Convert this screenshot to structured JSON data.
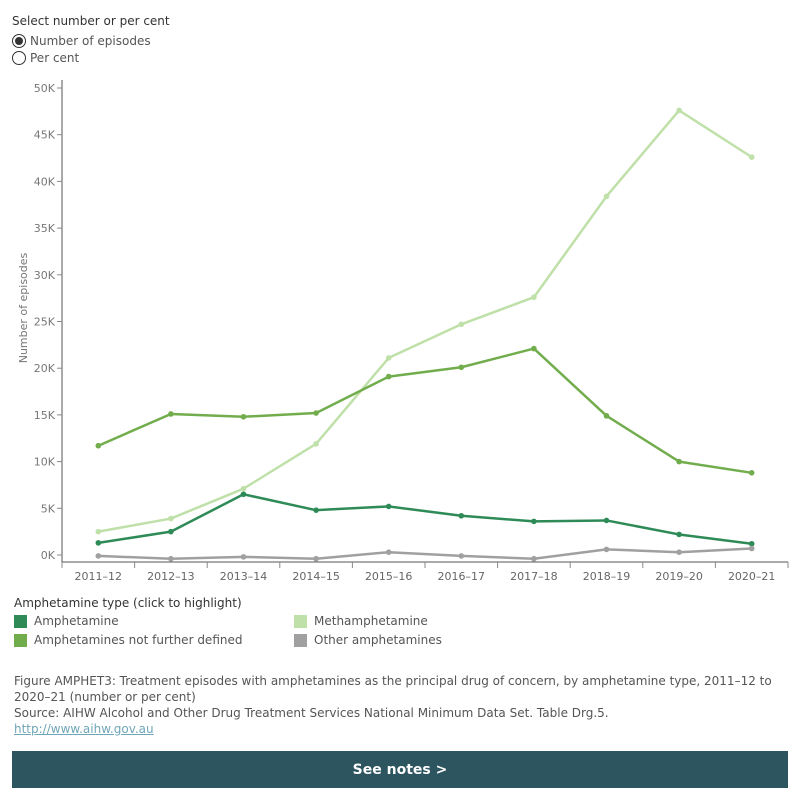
{
  "selector": {
    "title": "Select number or per cent",
    "options": [
      {
        "label": "Number of episodes",
        "selected": true
      },
      {
        "label": "Per cent",
        "selected": false
      }
    ]
  },
  "chart_data": {
    "type": "line",
    "categories": [
      "2011–12",
      "2012–13",
      "2013–14",
      "2014–15",
      "2015–16",
      "2016–17",
      "2017–18",
      "2018–19",
      "2019–20",
      "2020–21"
    ],
    "ylabel": "Number of episodes",
    "ylim": [
      0,
      50000
    ],
    "yticks": [
      0,
      5000,
      10000,
      15000,
      20000,
      25000,
      30000,
      35000,
      40000,
      45000,
      50000
    ],
    "ytick_labels": [
      "0K",
      "5K",
      "10K",
      "15K",
      "20K",
      "25K",
      "30K",
      "35K",
      "40K",
      "45K",
      "50K"
    ],
    "grid": false,
    "series": [
      {
        "name": "Methamphetamine",
        "color": "#bfe0a8",
        "values": [
          2500,
          3900,
          7100,
          11900,
          21100,
          24700,
          27600,
          38400,
          47600,
          42600
        ]
      },
      {
        "name": "Amphetamines not further defined",
        "color": "#72ad4d",
        "values": [
          11700,
          15100,
          14800,
          15200,
          19100,
          20100,
          22100,
          14900,
          10000,
          8800
        ]
      },
      {
        "name": "Amphetamine",
        "color": "#2e8b57",
        "values": [
          1300,
          2500,
          6500,
          4800,
          5200,
          4200,
          3600,
          3700,
          2200,
          1200
        ]
      },
      {
        "name": "Other amphetamines",
        "color": "#a0a0a0",
        "values": [
          -100,
          -400,
          -200,
          -400,
          300,
          -100,
          -400,
          600,
          300,
          700
        ]
      }
    ]
  },
  "legend": {
    "title": "Amphetamine type (click to highlight)",
    "items": [
      {
        "label": "Amphetamine",
        "color": "#2e8b57"
      },
      {
        "label": "Methamphetamine",
        "color": "#bfe0a8"
      },
      {
        "label": "Amphetamines not further defined",
        "color": "#72ad4d"
      },
      {
        "label": "Other amphetamines",
        "color": "#a0a0a0"
      }
    ]
  },
  "footer": {
    "caption": "Figure AMPHET3: Treatment episodes with amphetamines as the principal drug of concern, by amphetamine type, 2011–12 to 2020–21 (number or per cent)",
    "source": "Source: AIHW Alcohol and Other Drug Treatment Services National Minimum Data Set. Table Drg.5.",
    "link": "http://www.aihw.gov.au"
  },
  "notes_button": "See notes >"
}
